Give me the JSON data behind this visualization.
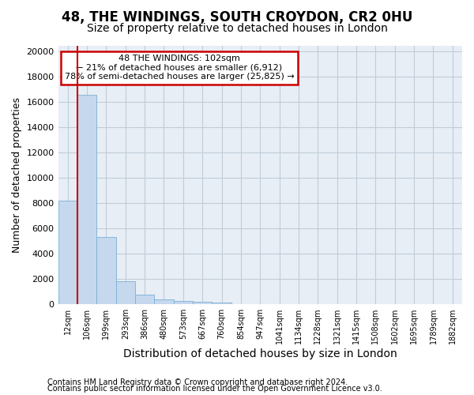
{
  "title1": "48, THE WINDINGS, SOUTH CROYDON, CR2 0HU",
  "title2": "Size of property relative to detached houses in London",
  "xlabel": "Distribution of detached houses by size in London",
  "ylabel": "Number of detached properties",
  "categories": [
    "12sqm",
    "106sqm",
    "199sqm",
    "293sqm",
    "386sqm",
    "480sqm",
    "573sqm",
    "667sqm",
    "760sqm",
    "854sqm",
    "947sqm",
    "1041sqm",
    "1134sqm",
    "1228sqm",
    "1321sqm",
    "1415sqm",
    "1508sqm",
    "1602sqm",
    "1695sqm",
    "1789sqm",
    "1882sqm"
  ],
  "values": [
    8200,
    16600,
    5300,
    1850,
    750,
    350,
    270,
    200,
    160,
    0,
    0,
    0,
    0,
    0,
    0,
    0,
    0,
    0,
    0,
    0,
    0
  ],
  "bar_color": "#c5d8ee",
  "bar_edge_color": "#7aafd4",
  "annotation_text_line1": "48 THE WINDINGS: 102sqm",
  "annotation_text_line2": "← 21% of detached houses are smaller (6,912)",
  "annotation_text_line3": "78% of semi-detached houses are larger (25,825) →",
  "red_line_x": 1,
  "ylim": [
    0,
    20500
  ],
  "yticks": [
    0,
    2000,
    4000,
    6000,
    8000,
    10000,
    12000,
    14000,
    16000,
    18000,
    20000
  ],
  "footer1": "Contains HM Land Registry data © Crown copyright and database right 2024.",
  "footer2": "Contains public sector information licensed under the Open Government Licence v3.0.",
  "bg_color": "#ffffff",
  "plot_bg_color": "#e8eef5",
  "grid_color": "#c0ccd8",
  "title1_fontsize": 12,
  "title2_fontsize": 10,
  "annotation_box_color": "#ffffff",
  "annotation_box_edge": "#cc0000",
  "red_line_color": "#cc0000",
  "footer_fontsize": 7,
  "ylabel_fontsize": 9,
  "xlabel_fontsize": 10
}
